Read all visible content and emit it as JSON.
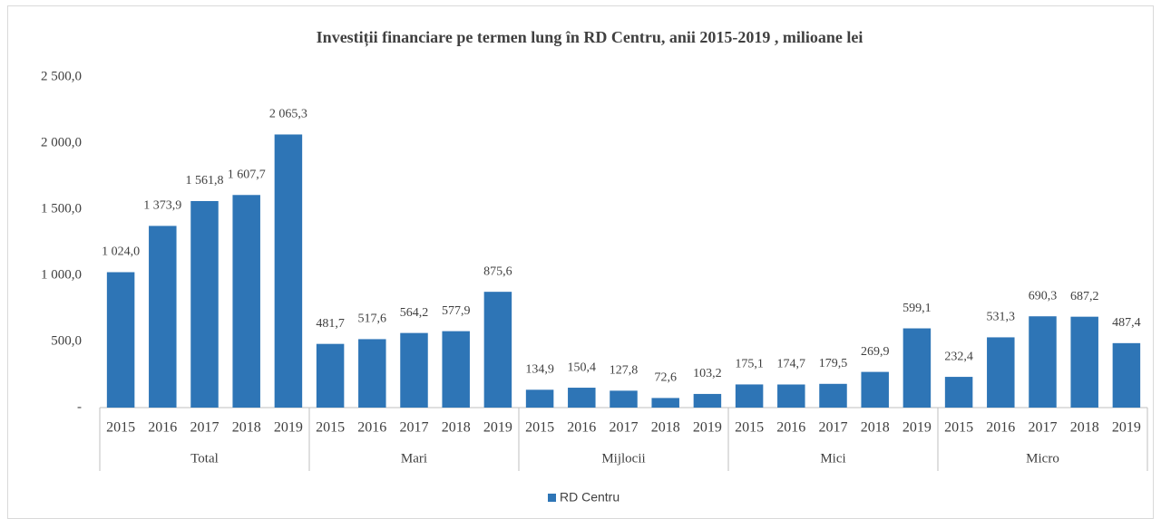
{
  "chart_data": {
    "type": "bar",
    "title": "Investiții financiare pe termen lung în RD Centru, anii 2015-2019 , milioane lei",
    "categories": [
      "2015",
      "2016",
      "2017",
      "2018",
      "2019",
      "2015",
      "2016",
      "2017",
      "2018",
      "2019",
      "2015",
      "2016",
      "2017",
      "2018",
      "2019",
      "2015",
      "2016",
      "2017",
      "2018",
      "2019",
      "2015",
      "2016",
      "2017",
      "2018",
      "2019"
    ],
    "category_groups": [
      "Total",
      "Mari",
      "Mijlocii",
      "Mici",
      "Micro"
    ],
    "series": [
      {
        "name": "RD Centru",
        "color": "#2e75b6",
        "values": [
          1024.0,
          1373.9,
          1561.8,
          1607.7,
          2065.3,
          481.7,
          517.6,
          564.2,
          577.9,
          875.6,
          134.9,
          150.4,
          127.8,
          72.6,
          103.2,
          175.1,
          174.7,
          179.5,
          269.9,
          599.1,
          232.4,
          531.3,
          690.3,
          687.2,
          487.4
        ],
        "value_labels": [
          "1 024,0",
          "1 373,9",
          "1 561,8",
          "1 607,7",
          "2 065,3",
          "481,7",
          "517,6",
          "564,2",
          "577,9",
          "875,6",
          "134,9",
          "150,4",
          "127,8",
          "72,6",
          "103,2",
          "175,1",
          "174,7",
          "179,5",
          "269,9",
          "599,1",
          "232,4",
          "531,3",
          "690,3",
          "687,2",
          "487,4"
        ]
      }
    ],
    "ylim": [
      0,
      2500
    ],
    "yticks": [
      {
        "value": 0,
        "label": "-"
      },
      {
        "value": 500,
        "label": "500,0"
      },
      {
        "value": 1000,
        "label": "1 000,0"
      },
      {
        "value": 1500,
        "label": "1 500,0"
      },
      {
        "value": 2000,
        "label": "2 000,0"
      },
      {
        "value": 2500,
        "label": "2 500,0"
      }
    ],
    "grid": false,
    "legend": "bottom"
  }
}
